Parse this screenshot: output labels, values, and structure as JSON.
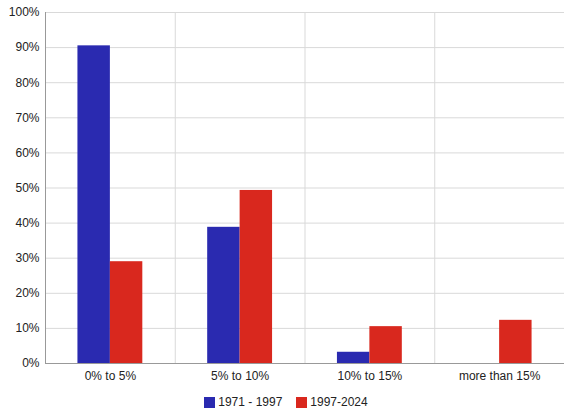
{
  "chart_data": {
    "type": "bar",
    "categories": [
      "0% to 5%",
      "5% to 10%",
      "10% to 15%",
      "more than 15%"
    ],
    "series": [
      {
        "name": "1971 - 1997",
        "color": "#2a2ab0",
        "values": [
          90.5,
          38.8,
          3.2,
          0
        ]
      },
      {
        "name": "1997-2024",
        "color": "#d9281e",
        "values": [
          29,
          49.3,
          10.5,
          12.3
        ]
      }
    ],
    "ylim": [
      0,
      100
    ],
    "yticks": [
      {
        "value": 0,
        "label": "0%"
      },
      {
        "value": 10,
        "label": "10%"
      },
      {
        "value": 20,
        "label": "20%"
      },
      {
        "value": 30,
        "label": "30%"
      },
      {
        "value": 40,
        "label": "40%"
      },
      {
        "value": 50,
        "label": "50%"
      },
      {
        "value": 60,
        "label": "60%"
      },
      {
        "value": 70,
        "label": "70%"
      },
      {
        "value": 80,
        "label": "80%"
      },
      {
        "value": 90,
        "label": "90%"
      },
      {
        "value": 100,
        "label": "100%"
      }
    ],
    "grid": true,
    "legend": "bottom"
  }
}
